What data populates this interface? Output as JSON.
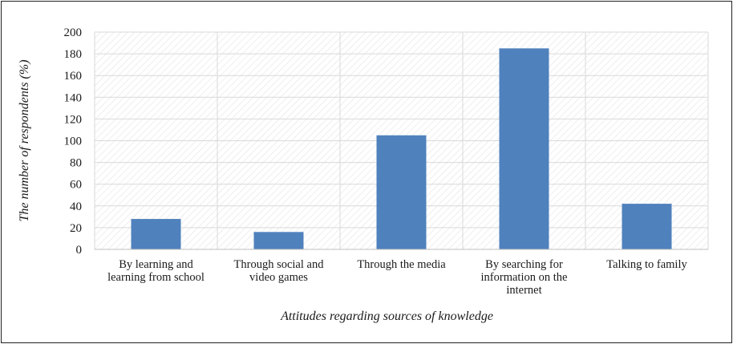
{
  "chart_data": {
    "type": "bar",
    "title": "",
    "xlabel": "Attitudes regarding sources of knowledge",
    "ylabel": "The number of respondents (%)",
    "ylim": [
      0,
      200
    ],
    "yticks": [
      0,
      20,
      40,
      60,
      80,
      100,
      120,
      140,
      160,
      180,
      200
    ],
    "grid": true,
    "legend": "none",
    "categories": [
      "By learning and learning from school",
      "Through social and video games",
      "Through the media",
      "By searching for information on the internet",
      "Talking to family"
    ],
    "category_label_lines": [
      [
        "By learning and",
        "learning from school"
      ],
      [
        "Through social and",
        "video games"
      ],
      [
        "Through the media"
      ],
      [
        "By searching for",
        "information on the",
        "internet"
      ],
      [
        "Talking to family"
      ]
    ],
    "values": [
      28,
      16,
      105,
      185,
      42
    ],
    "colors": {
      "bar": "#4F81BD",
      "grid": "#D9D9D9",
      "hatch": "#E3E3E3",
      "axis": "#BFBFBF"
    }
  }
}
